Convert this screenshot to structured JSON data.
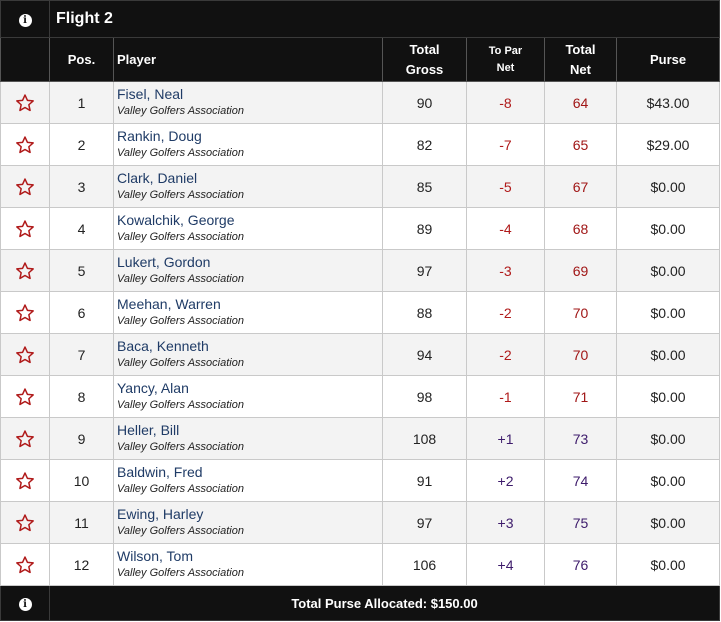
{
  "flight": {
    "title": "Flight 2",
    "info_icon": "info-icon"
  },
  "columns": {
    "pos": "Pos.",
    "player": "Player",
    "total_gross_1": "Total",
    "total_gross_2": "Gross",
    "to_par_1": "To Par",
    "to_par_2": "Net",
    "total_net_1": "Total",
    "total_net_2": "Net",
    "purse": "Purse"
  },
  "colors": {
    "header_bg": "#111111",
    "star": "#b01a1a",
    "under_par": "#b01a1a",
    "over_par": "#3d1b6b",
    "player_link": "#1f3b66"
  },
  "rows": [
    {
      "pos": "1",
      "name": "Fisel, Neal",
      "org": "Valley Golfers Association",
      "gross": "90",
      "to_par": "-8",
      "net": "64",
      "purse": "$43.00"
    },
    {
      "pos": "2",
      "name": "Rankin, Doug",
      "org": "Valley Golfers Association",
      "gross": "82",
      "to_par": "-7",
      "net": "65",
      "purse": "$29.00"
    },
    {
      "pos": "3",
      "name": "Clark, Daniel",
      "org": "Valley Golfers Association",
      "gross": "85",
      "to_par": "-5",
      "net": "67",
      "purse": "$0.00"
    },
    {
      "pos": "4",
      "name": "Kowalchik, George",
      "org": "Valley Golfers Association",
      "gross": "89",
      "to_par": "-4",
      "net": "68",
      "purse": "$0.00"
    },
    {
      "pos": "5",
      "name": "Lukert, Gordon",
      "org": "Valley Golfers Association",
      "gross": "97",
      "to_par": "-3",
      "net": "69",
      "purse": "$0.00"
    },
    {
      "pos": "6",
      "name": "Meehan, Warren",
      "org": "Valley Golfers Association",
      "gross": "88",
      "to_par": "-2",
      "net": "70",
      "purse": "$0.00"
    },
    {
      "pos": "7",
      "name": "Baca, Kenneth",
      "org": "Valley Golfers Association",
      "gross": "94",
      "to_par": "-2",
      "net": "70",
      "purse": "$0.00"
    },
    {
      "pos": "8",
      "name": "Yancy, Alan",
      "org": "Valley Golfers Association",
      "gross": "98",
      "to_par": "-1",
      "net": "71",
      "purse": "$0.00"
    },
    {
      "pos": "9",
      "name": "Heller, Bill",
      "org": "Valley Golfers Association",
      "gross": "108",
      "to_par": "+1",
      "net": "73",
      "purse": "$0.00"
    },
    {
      "pos": "10",
      "name": "Baldwin, Fred",
      "org": "Valley Golfers Association",
      "gross": "91",
      "to_par": "+2",
      "net": "74",
      "purse": "$0.00"
    },
    {
      "pos": "11",
      "name": "Ewing, Harley",
      "org": "Valley Golfers Association",
      "gross": "97",
      "to_par": "+3",
      "net": "75",
      "purse": "$0.00"
    },
    {
      "pos": "12",
      "name": "Wilson, Tom",
      "org": "Valley Golfers Association",
      "gross": "106",
      "to_par": "+4",
      "net": "76",
      "purse": "$0.00"
    }
  ],
  "footer": {
    "total_purse": "Total Purse Allocated: $150.00",
    "info_icon": "info-icon"
  }
}
